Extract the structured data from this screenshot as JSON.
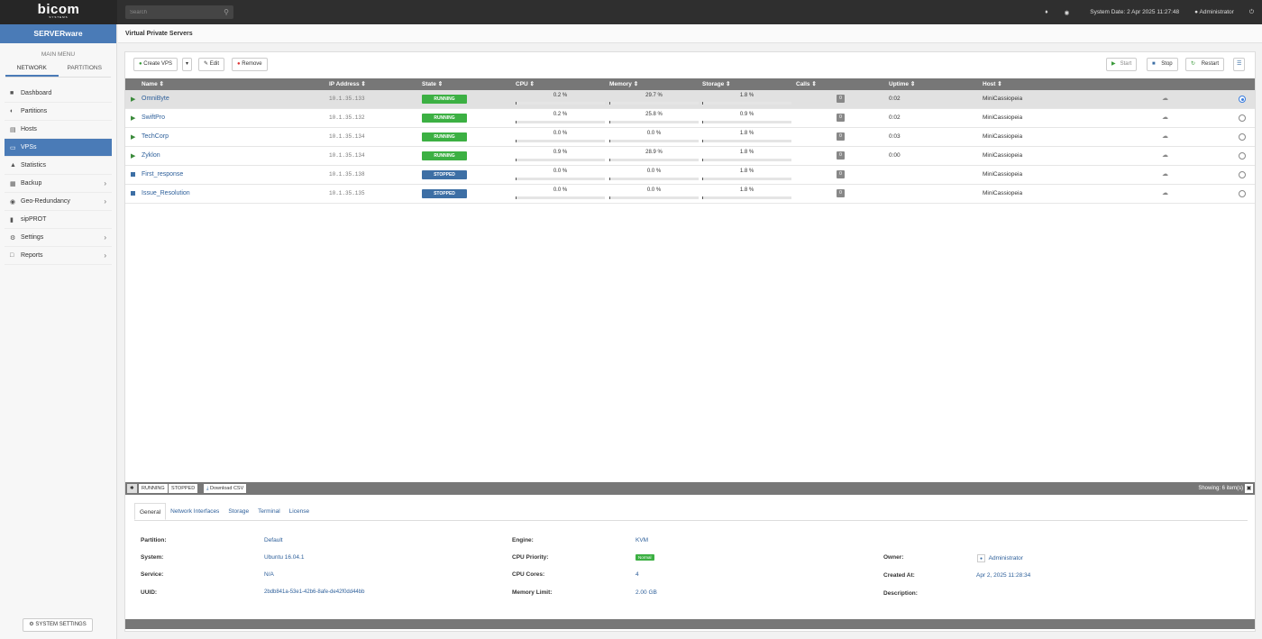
{
  "topbar": {
    "logo": "bicom",
    "logo_sub": "SYSTEMS",
    "search_placeholder": "Search",
    "system_date": "System Date: 2 Apr 2025 11:27:48",
    "user": "Administrator"
  },
  "sidebar": {
    "brand": "SERVERware",
    "main_menu": "MAIN MENU",
    "tabs": [
      "NETWORK",
      "PARTITIONS"
    ],
    "items": [
      {
        "label": "Dashboard",
        "icon": "dashboard-icon"
      },
      {
        "label": "Partitions",
        "icon": "partitions-icon"
      },
      {
        "label": "Hosts",
        "icon": "hosts-icon"
      },
      {
        "label": "VPSs",
        "icon": "vps-icon"
      },
      {
        "label": "Statistics",
        "icon": "statistics-icon"
      },
      {
        "label": "Backup",
        "icon": "backup-icon"
      },
      {
        "label": "Geo-Redundancy",
        "icon": "geo-icon"
      },
      {
        "label": "sipPROT",
        "icon": "shield-icon"
      },
      {
        "label": "Settings",
        "icon": "settings-icon"
      },
      {
        "label": "Reports",
        "icon": "reports-icon"
      }
    ],
    "system_settings": "SYSTEM SETTINGS"
  },
  "page": {
    "title": "Virtual Private Servers"
  },
  "toolbar": {
    "create": "Create VPS",
    "edit": "Edit",
    "remove": "Remove",
    "start": "Start",
    "stop": "Stop",
    "restart": "Restart"
  },
  "table": {
    "headers": [
      "Name",
      "IP Address",
      "State",
      "CPU",
      "Memory",
      "Storage",
      "Calls",
      "Uptime",
      "Host"
    ],
    "rows": [
      {
        "name": "OmniByte",
        "ip": "10.1.35.133",
        "state": "RUNNING",
        "cpu": "0.2 %",
        "cpu_v": 0.2,
        "mem": "29.7 %",
        "mem_v": 29.7,
        "sto": "1.8 %",
        "sto_v": 1.8,
        "calls": "0",
        "uptime": "0:02",
        "host": "MiniCassiopeia"
      },
      {
        "name": "SwiftPro",
        "ip": "10.1.35.132",
        "state": "RUNNING",
        "cpu": "0.2 %",
        "cpu_v": 0.2,
        "mem": "25.8 %",
        "mem_v": 25.8,
        "sto": "0.9 %",
        "sto_v": 0.9,
        "calls": "0",
        "uptime": "0:02",
        "host": "MiniCassiopeia"
      },
      {
        "name": "TechCorp",
        "ip": "10.1.35.134",
        "state": "RUNNING",
        "cpu": "0.0 %",
        "cpu_v": 0.0,
        "mem": "0.0 %",
        "mem_v": 0.0,
        "sto": "1.8 %",
        "sto_v": 1.8,
        "calls": "0",
        "uptime": "0:03",
        "host": "MiniCassiopeia"
      },
      {
        "name": "Zyklon",
        "ip": "10.1.35.134",
        "state": "RUNNING",
        "cpu": "0.9 %",
        "cpu_v": 0.9,
        "mem": "28.9 %",
        "mem_v": 28.9,
        "sto": "1.8 %",
        "sto_v": 1.8,
        "calls": "0",
        "uptime": "0:00",
        "host": "MiniCassiopeia"
      },
      {
        "name": "First_response",
        "ip": "10.1.35.138",
        "state": "STOPPED",
        "cpu": "0.0 %",
        "cpu_v": 0.0,
        "mem": "0.0 %",
        "mem_v": 0.0,
        "sto": "1.8 %",
        "sto_v": 1.8,
        "calls": "0",
        "uptime": "",
        "host": "MiniCassiopeia"
      },
      {
        "name": "Issue_Resolution",
        "ip": "10.1.35.135",
        "state": "STOPPED",
        "cpu": "0.0 %",
        "cpu_v": 0.0,
        "mem": "0.0 %",
        "mem_v": 0.0,
        "sto": "1.8 %",
        "sto_v": 1.8,
        "calls": "0",
        "uptime": "",
        "host": "MiniCassiopeia"
      }
    ],
    "filter_running": "RUNNING",
    "filter_stopped": "STOPPED",
    "download_csv": "Download CSV",
    "showing": "Showing: 6 item(s)"
  },
  "details": {
    "tabs": [
      "General",
      "Network Interfaces",
      "Storage",
      "Terminal",
      "License"
    ],
    "partition_label": "Partition:",
    "partition": "Default",
    "system_label": "System:",
    "system": "Ubuntu 16.04.1",
    "service_label": "Service:",
    "service": "N/A",
    "uuid_label": "UUID:",
    "uuid": "2bdb841a-53e1-42b6-8afe-de42f0dd44bb",
    "engine_label": "Engine:",
    "engine": "KVM",
    "cpu_priority_label": "CPU Priority:",
    "cpu_priority": "Normal",
    "cpu_cores_label": "CPU Cores:",
    "cpu_cores": "4",
    "memory_limit_label": "Memory Limit:",
    "memory_limit": "2.00 GB",
    "owner_label": "Owner:",
    "owner": "Administrator",
    "created_label": "Created At:",
    "created": "Apr 2, 2025 11:28:34",
    "description_label": "Description:"
  }
}
